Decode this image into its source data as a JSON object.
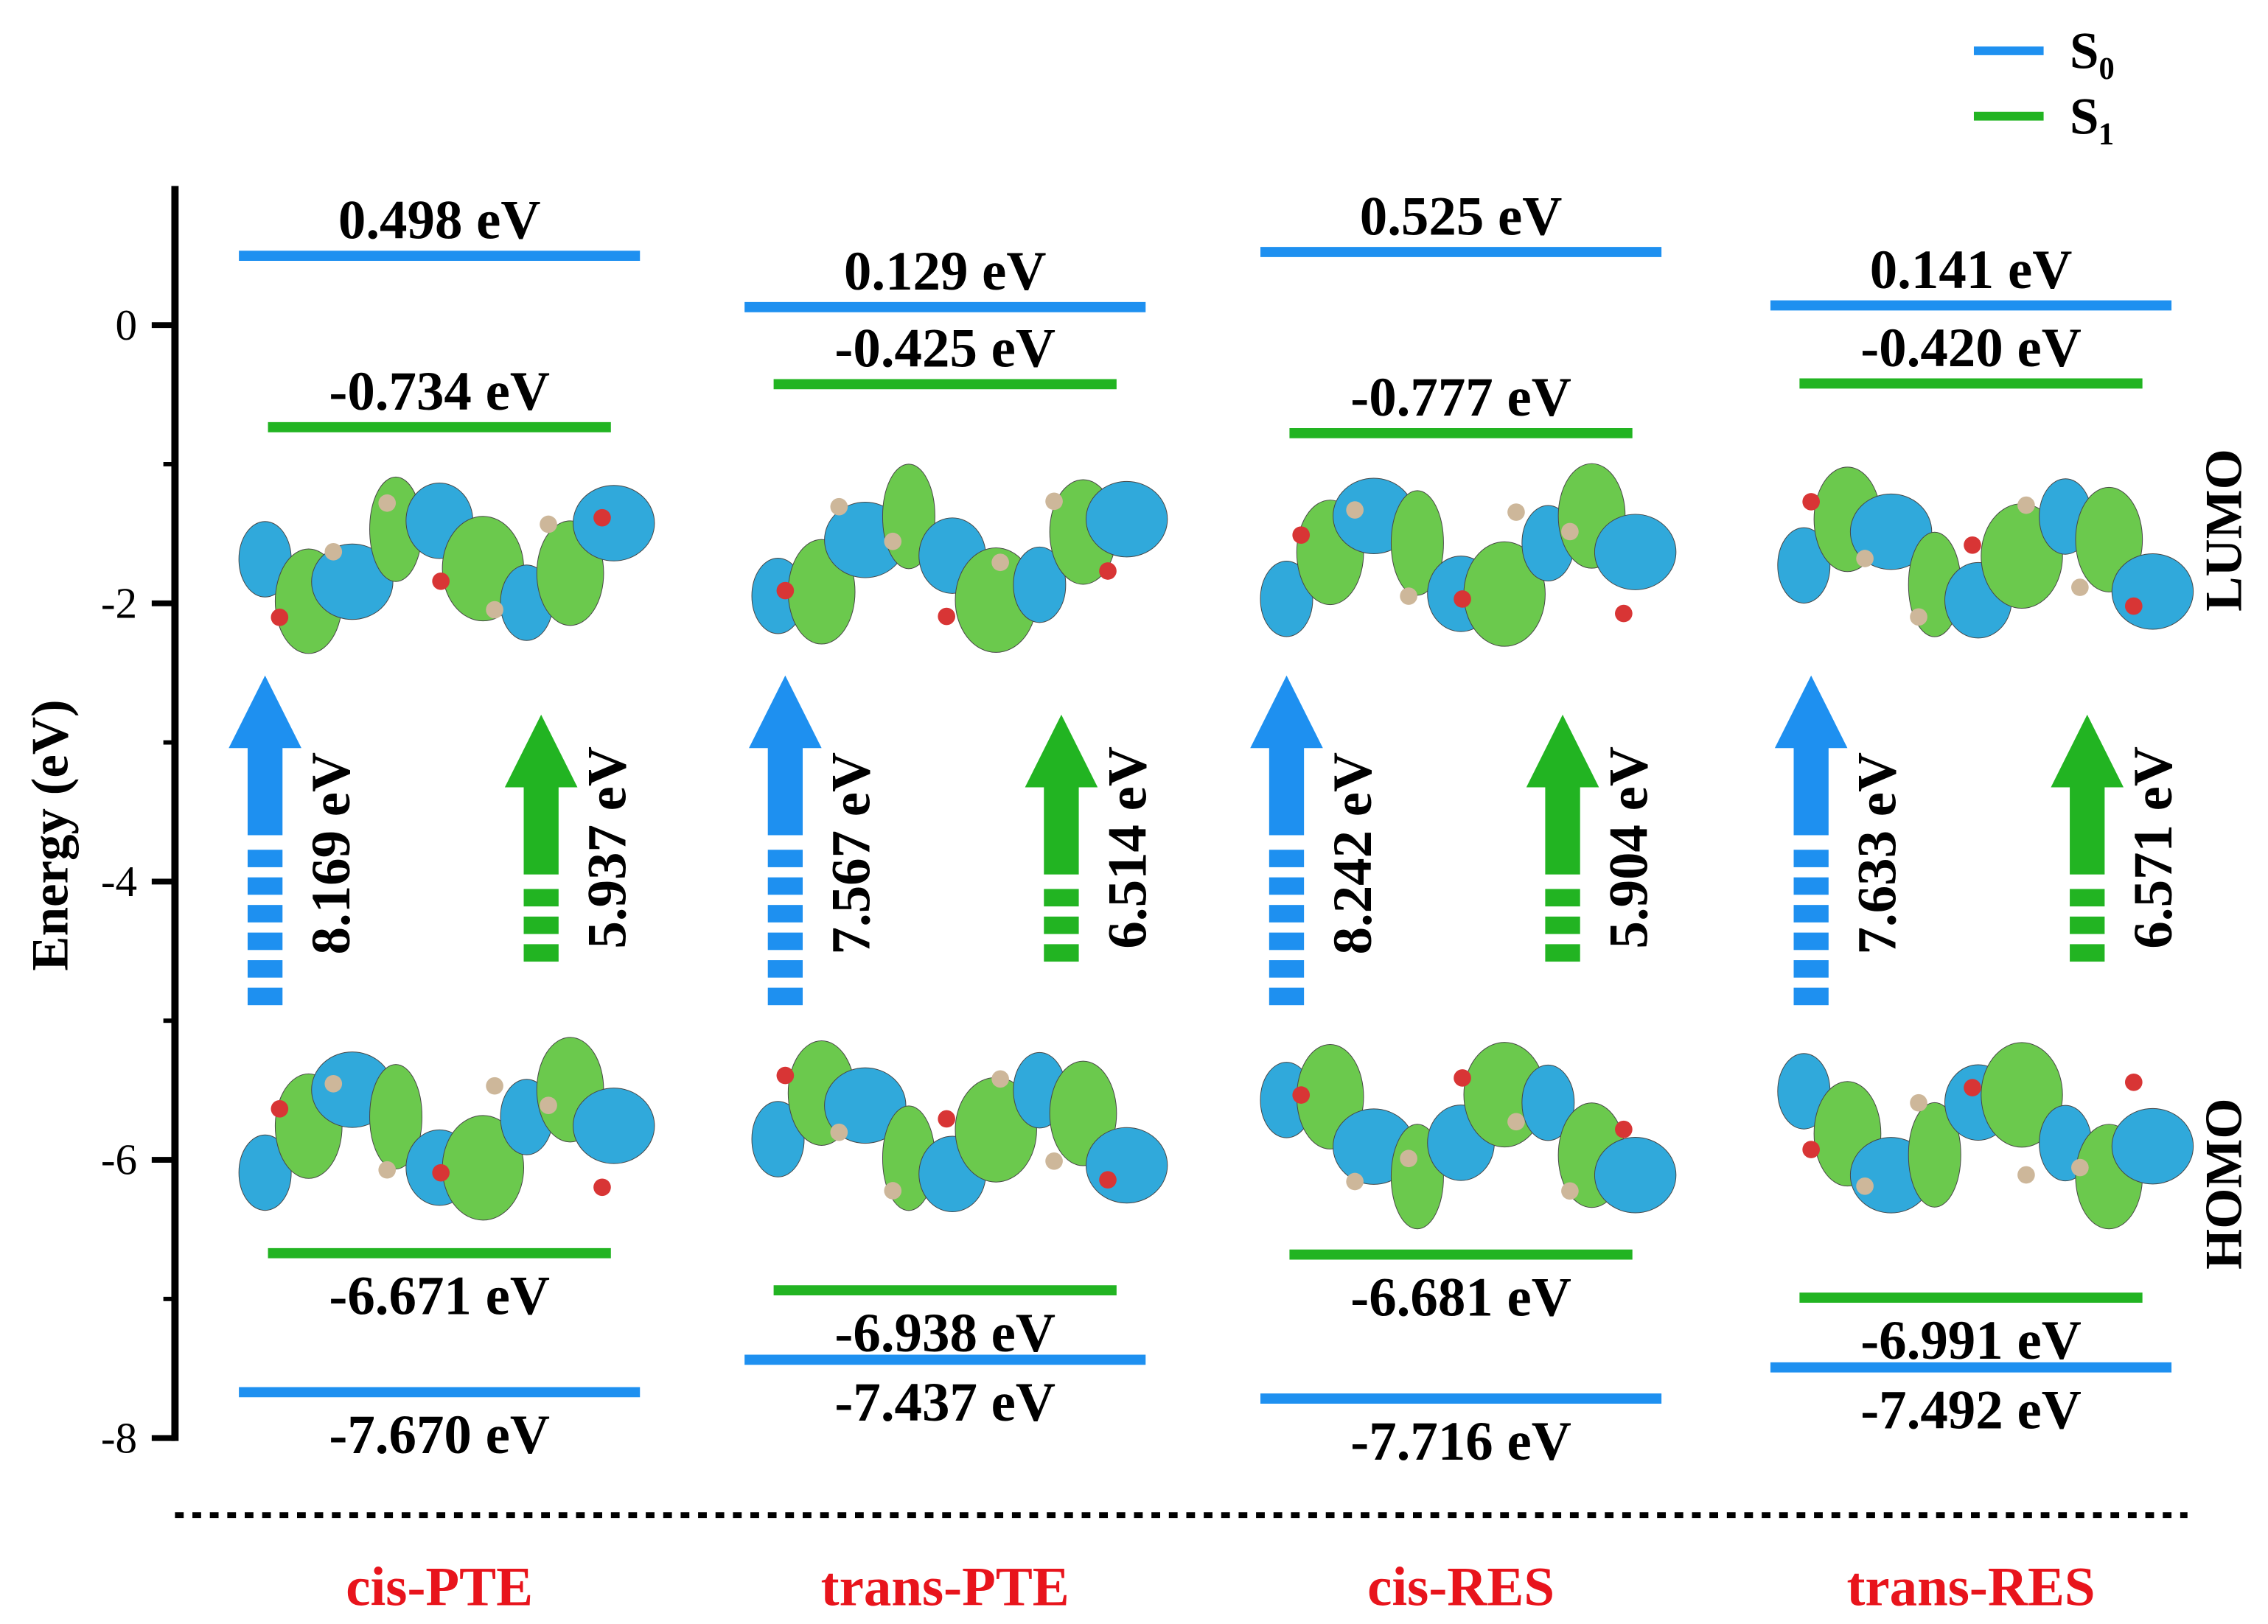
{
  "chart_data": {
    "type": "energy-levels",
    "ylabel": "Energy (eV)",
    "ylim": [
      -8,
      1
    ],
    "yticks": [
      0,
      -2,
      -4,
      -6,
      -8
    ],
    "minor_yticks": [
      -1,
      -3,
      -5,
      -7
    ],
    "categories": [
      "cis-PTE",
      "trans-PTE",
      "cis-RES",
      "trans-RES"
    ],
    "category_color": "#e8141c",
    "annotations": [
      "LUMO",
      "HOMO"
    ],
    "legend": "top-right",
    "series": [
      {
        "name": "S₀",
        "color": "#1e90f0",
        "lumo": [
          0.498,
          0.129,
          0.525,
          0.141
        ],
        "lumo_labels": [
          "0.498 eV",
          "0.129 eV",
          "0.525 eV",
          "0.141 eV"
        ],
        "homo": [
          -7.67,
          -7.437,
          -7.716,
          -7.492
        ],
        "homo_labels": [
          "-7.670 eV",
          "-7.437 eV",
          "-7.716 eV",
          "-7.492 eV"
        ],
        "gap": [
          8.169,
          7.567,
          8.242,
          7.633
        ],
        "gap_labels": [
          "8.169 eV",
          "7.567 eV",
          "8.242 eV",
          "7.633 eV"
        ]
      },
      {
        "name": "S₁",
        "color": "#22b422",
        "lumo": [
          -0.734,
          -0.425,
          -0.777,
          -0.42
        ],
        "lumo_labels": [
          "-0.734 eV",
          "-0.425 eV",
          "-0.777 eV",
          "-0.420 eV"
        ],
        "homo": [
          -6.671,
          -6.938,
          -6.681,
          -6.991
        ],
        "homo_labels": [
          "-6.671 eV",
          "-6.938 eV",
          "-6.681 eV",
          "-6.991 eV"
        ],
        "gap": [
          5.937,
          6.514,
          5.904,
          6.571
        ],
        "gap_labels": [
          "5.937 eV",
          "6.514 eV",
          "5.904 eV",
          "6.571 eV"
        ]
      }
    ]
  }
}
